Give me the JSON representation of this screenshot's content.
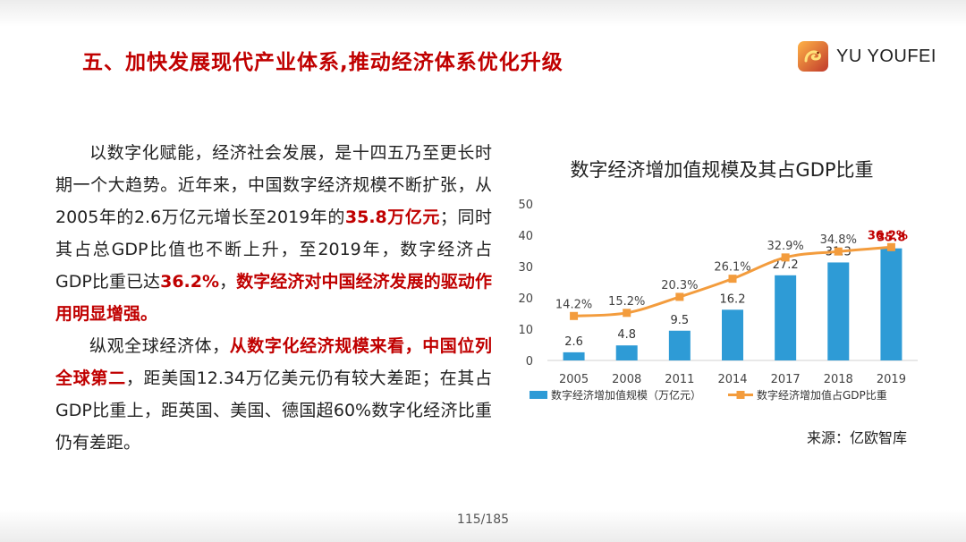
{
  "title": "五、加快发展现代产业体系,推动经济体系优化升级",
  "logo": {
    "text": "YU YOUFEI",
    "icon": "snake-logo-icon"
  },
  "paragraph1": {
    "t1": "以数字化赋能，经济社会发展，是十四五乃至更长时期一个大趋势。近年来，中国数字经济规模不断扩张，从2005年的2.6万亿元增长至2019年的",
    "h1": "35.8万亿元",
    "t2": "；同时其占总GDP比值也不断上升，至2019年，数字经济占GDP比重已达",
    "h2": "36.2%",
    "t3": "，",
    "h3": "数字经济对中国经济发展的驱动作用明显增强。"
  },
  "paragraph2": {
    "t1": "纵观全球经济体，",
    "h1": "从数字化经济规模来看，中国位列全球第二",
    "t2": "，距美国12.34万亿美元仍有较大差距；在其占GDP比重上，距英国、美国、德国超60%数字化经济比重仍有差距。"
  },
  "chart_data": {
    "type": "bar+line",
    "title": "数字经济增加值规模及其占GDP比重",
    "categories": [
      "2005",
      "2008",
      "2011",
      "2014",
      "2017",
      "2018",
      "2019"
    ],
    "series": [
      {
        "name": "数字经济增加值规模（万亿元）",
        "type": "bar",
        "values": [
          2.6,
          4.8,
          9.5,
          16.2,
          27.2,
          31.3,
          35.8
        ],
        "labels": [
          "2.6",
          "4.8",
          "9.5",
          "16.2",
          "27.2",
          "31.3",
          "35.8"
        ],
        "color": "#2e9bd6"
      },
      {
        "name": "数字经济增加值占GDP比重",
        "type": "line",
        "values": [
          14.2,
          15.2,
          20.3,
          26.1,
          32.9,
          34.8,
          36.2
        ],
        "labels": [
          "14.2%",
          "15.2%",
          "20.3%",
          "26.1%",
          "32.9%",
          "34.8%",
          "36.2%"
        ],
        "color": "#f39c3d"
      }
    ],
    "yticks": [
      "0",
      "10",
      "20",
      "30",
      "40",
      "50"
    ],
    "ylim": [
      0,
      50
    ],
    "highlight_color": "#c00000",
    "legend_position": "bottom"
  },
  "source": "来源：亿欧智库",
  "page_number": "115/185"
}
